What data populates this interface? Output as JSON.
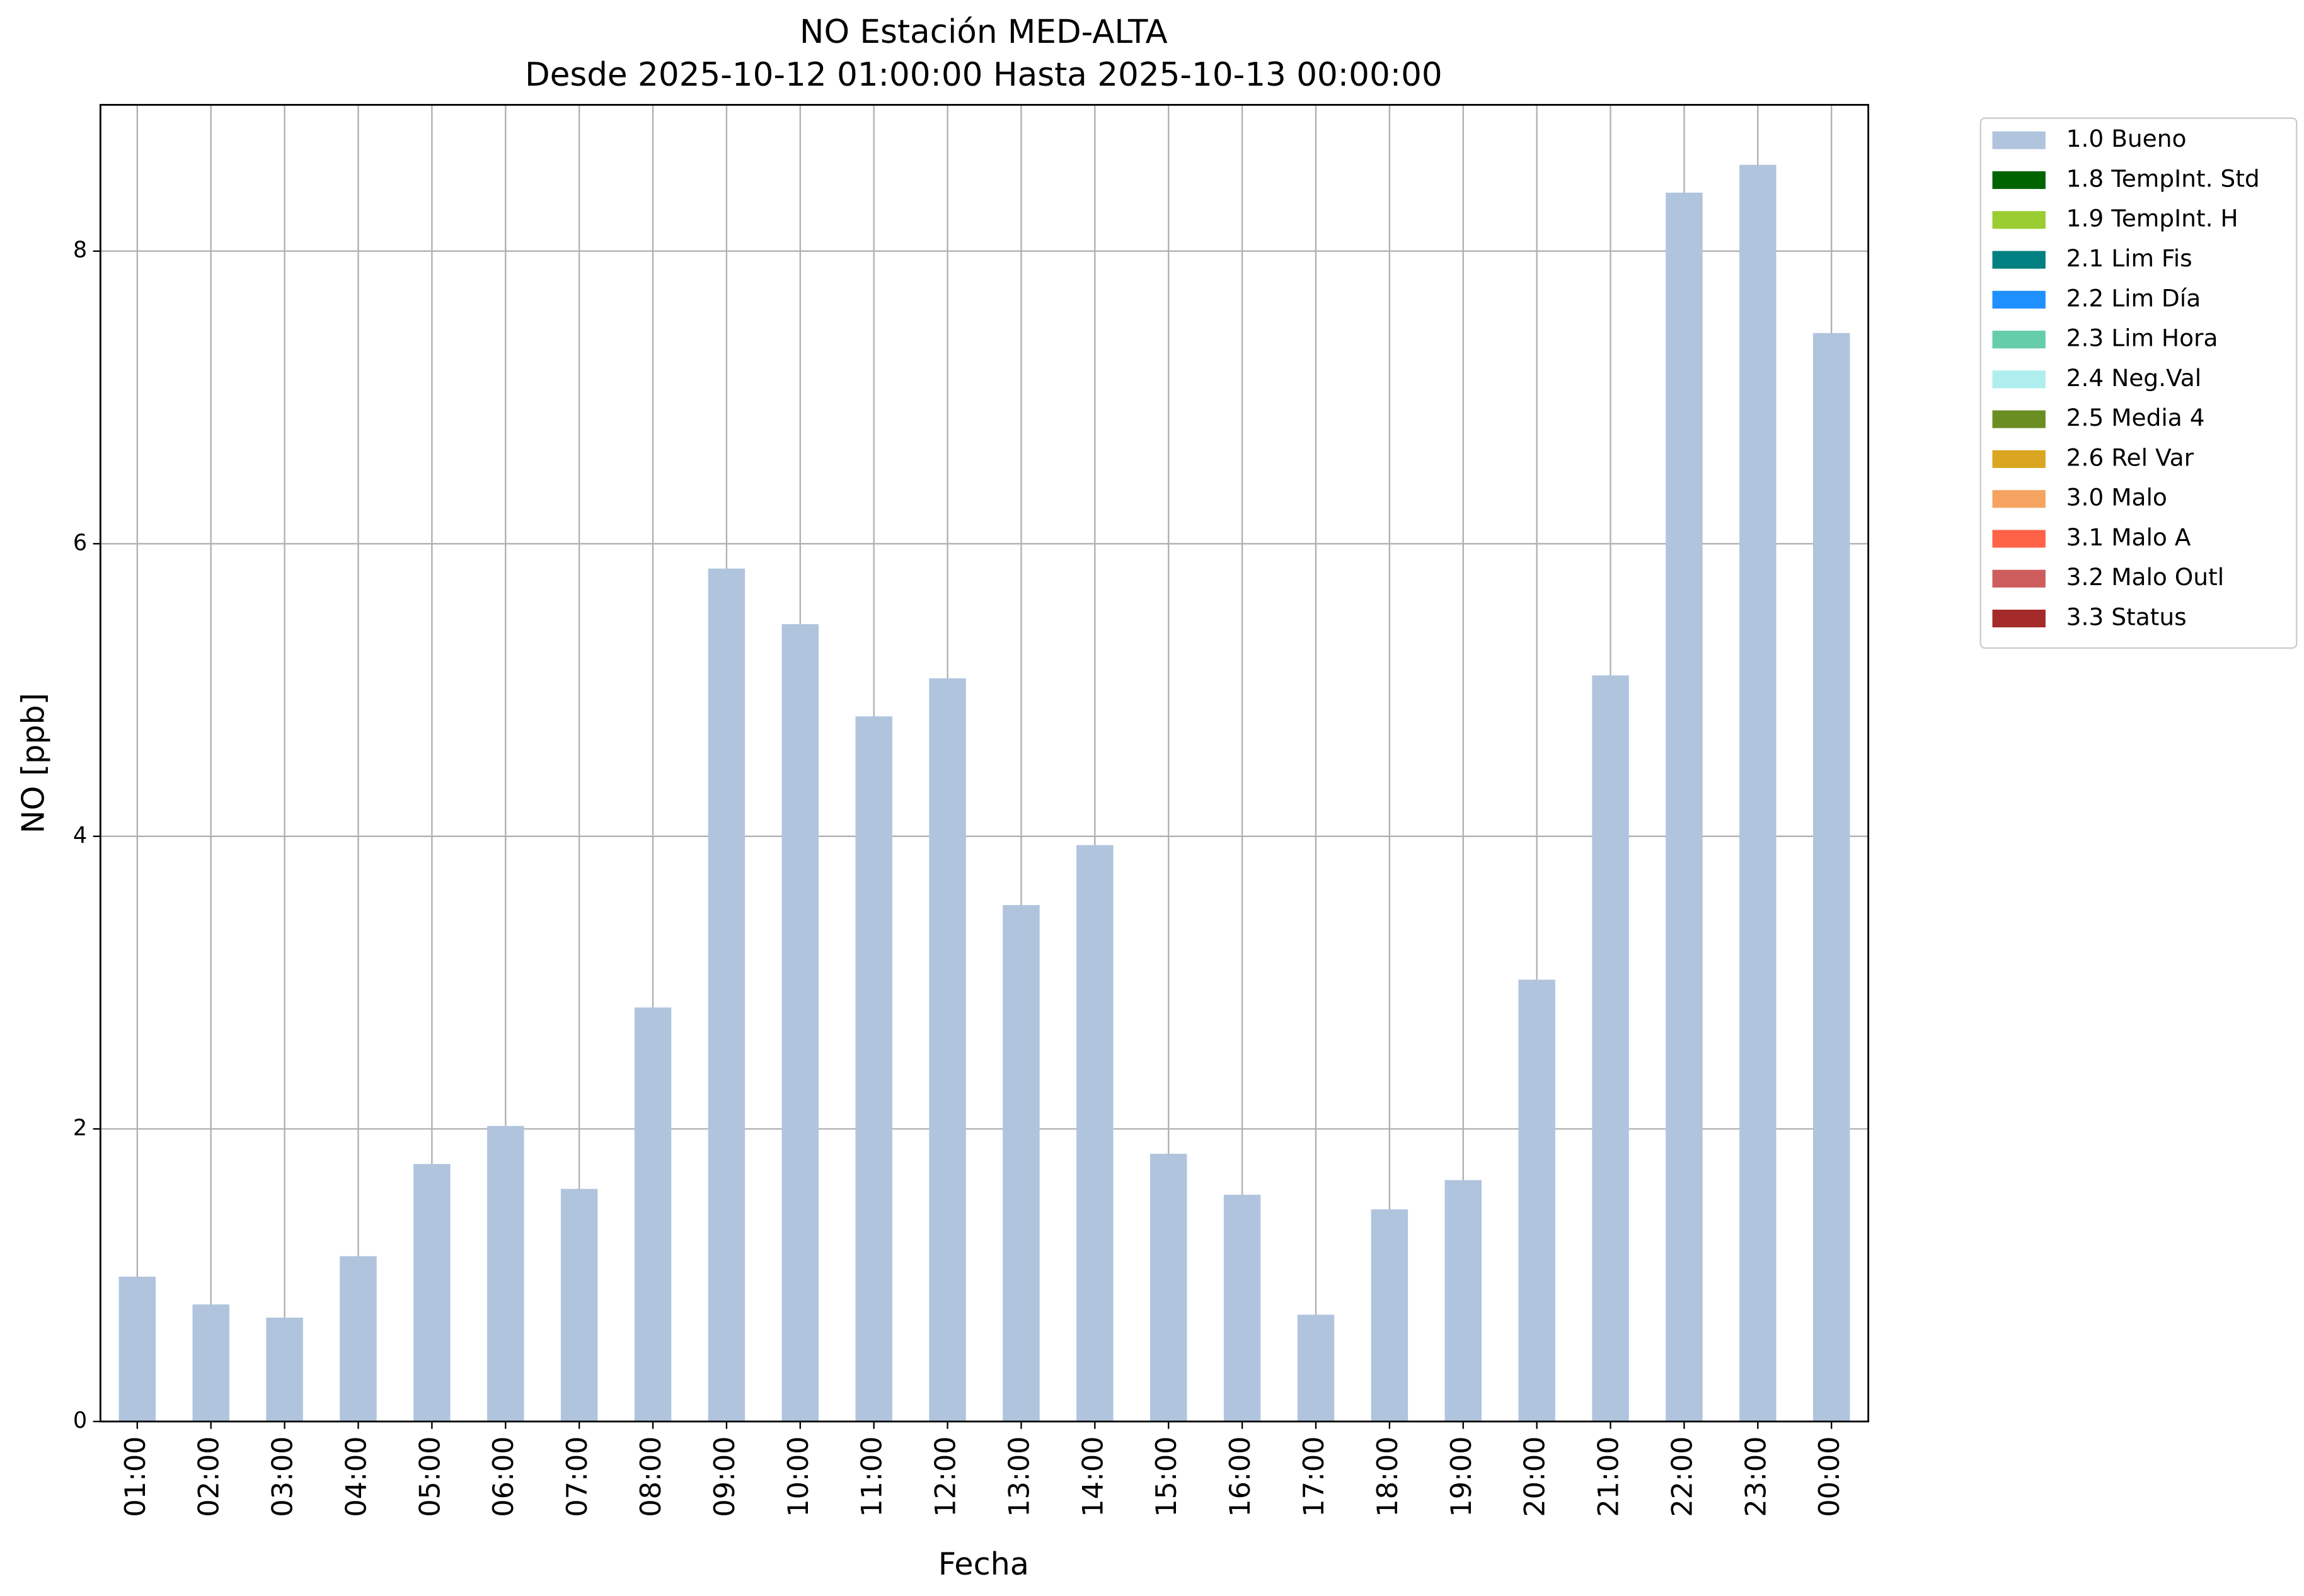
{
  "chart_data": {
    "type": "bar",
    "stacked": true,
    "title": "NO Estación MED-ALTA",
    "subtitle": "Desde 2025-10-12 01:00:00 Hasta 2025-10-13 00:00:00",
    "xlabel": "Fecha",
    "ylabel": "NO [ppb]",
    "categories": [
      "01:00",
      "02:00",
      "03:00",
      "04:00",
      "05:00",
      "06:00",
      "07:00",
      "08:00",
      "09:00",
      "10:00",
      "11:00",
      "12:00",
      "13:00",
      "14:00",
      "15:00",
      "16:00",
      "17:00",
      "18:00",
      "19:00",
      "20:00",
      "21:00",
      "22:00",
      "23:00",
      "00:00"
    ],
    "series": [
      {
        "name": "1.0 Bueno",
        "color": "#b0c4de",
        "values": [
          0.99,
          0.8,
          0.71,
          1.13,
          1.76,
          2.02,
          1.59,
          2.83,
          5.83,
          5.45,
          4.82,
          5.08,
          3.53,
          3.94,
          1.83,
          1.55,
          0.73,
          1.45,
          1.65,
          3.02,
          5.1,
          8.4,
          8.59,
          7.44
        ]
      },
      {
        "name": "1.8 TempInt. Std",
        "color": "#006400",
        "values": [
          0,
          0,
          0,
          0,
          0,
          0,
          0,
          0,
          0,
          0,
          0,
          0,
          0,
          0,
          0,
          0,
          0,
          0,
          0,
          0,
          0,
          0,
          0,
          0
        ]
      },
      {
        "name": "1.9 TempInt. H",
        "color": "#9acd32",
        "values": [
          0,
          0,
          0,
          0,
          0,
          0,
          0,
          0,
          0,
          0,
          0,
          0,
          0,
          0,
          0,
          0,
          0,
          0,
          0,
          0,
          0,
          0,
          0,
          0
        ]
      },
      {
        "name": "2.1 Lim Fis",
        "color": "#008080",
        "values": [
          0,
          0,
          0,
          0,
          0,
          0,
          0,
          0,
          0,
          0,
          0,
          0,
          0,
          0,
          0,
          0,
          0,
          0,
          0,
          0,
          0,
          0,
          0,
          0
        ]
      },
      {
        "name": "2.2 Lim Día",
        "color": "#1e90ff",
        "values": [
          0,
          0,
          0,
          0,
          0,
          0,
          0,
          0,
          0,
          0,
          0,
          0,
          0,
          0,
          0,
          0,
          0,
          0,
          0,
          0,
          0,
          0,
          0,
          0
        ]
      },
      {
        "name": "2.3 Lim Hora",
        "color": "#66cdaa",
        "values": [
          0,
          0,
          0,
          0,
          0,
          0,
          0,
          0,
          0,
          0,
          0,
          0,
          0,
          0,
          0,
          0,
          0,
          0,
          0,
          0,
          0,
          0,
          0,
          0
        ]
      },
      {
        "name": "2.4 Neg.Val",
        "color": "#afeeee",
        "values": [
          0,
          0,
          0,
          0,
          0,
          0,
          0,
          0,
          0,
          0,
          0,
          0,
          0,
          0,
          0,
          0,
          0,
          0,
          0,
          0,
          0,
          0,
          0,
          0
        ]
      },
      {
        "name": "2.5 Media 4",
        "color": "#6b8e23",
        "values": [
          0,
          0,
          0,
          0,
          0,
          0,
          0,
          0,
          0,
          0,
          0,
          0,
          0,
          0,
          0,
          0,
          0,
          0,
          0,
          0,
          0,
          0,
          0,
          0
        ]
      },
      {
        "name": "2.6 Rel Var",
        "color": "#daa520",
        "values": [
          0,
          0,
          0,
          0,
          0,
          0,
          0,
          0,
          0,
          0,
          0,
          0,
          0,
          0,
          0,
          0,
          0,
          0,
          0,
          0,
          0,
          0,
          0,
          0
        ]
      },
      {
        "name": "3.0 Malo",
        "color": "#f4a460",
        "values": [
          0,
          0,
          0,
          0,
          0,
          0,
          0,
          0,
          0,
          0,
          0,
          0,
          0,
          0,
          0,
          0,
          0,
          0,
          0,
          0,
          0,
          0,
          0,
          0
        ]
      },
      {
        "name": "3.1 Malo A",
        "color": "#ff6347",
        "values": [
          0,
          0,
          0,
          0,
          0,
          0,
          0,
          0,
          0,
          0,
          0,
          0,
          0,
          0,
          0,
          0,
          0,
          0,
          0,
          0,
          0,
          0,
          0,
          0
        ]
      },
      {
        "name": "3.2 Malo Outl",
        "color": "#cd5c5c",
        "values": [
          0,
          0,
          0,
          0,
          0,
          0,
          0,
          0,
          0,
          0,
          0,
          0,
          0,
          0,
          0,
          0,
          0,
          0,
          0,
          0,
          0,
          0,
          0,
          0
        ]
      },
      {
        "name": "3.3 Status",
        "color": "#a52a2a",
        "values": [
          0,
          0,
          0,
          0,
          0,
          0,
          0,
          0,
          0,
          0,
          0,
          0,
          0,
          0,
          0,
          0,
          0,
          0,
          0,
          0,
          0,
          0,
          0,
          0
        ]
      }
    ],
    "ylim": [
      0,
      9
    ],
    "yticks": [
      0,
      2,
      4,
      6,
      8
    ],
    "grid": true,
    "legend": "outside-upper-right"
  }
}
